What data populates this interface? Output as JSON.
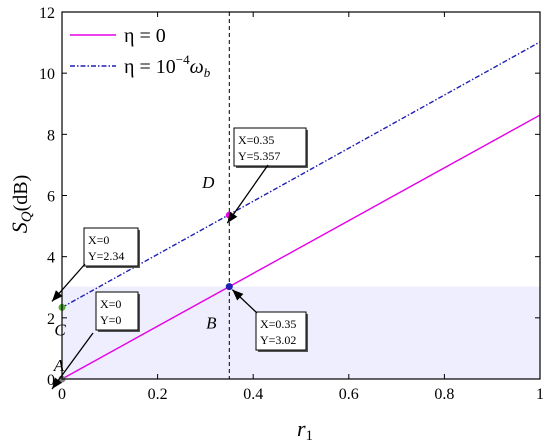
{
  "chart_data": {
    "type": "line",
    "xlabel": "r",
    "xlabel_sub": "1",
    "ylabel_main": "S",
    "ylabel_sub": "Q",
    "ylabel_unit": "(dB)",
    "xlim": [
      0,
      1
    ],
    "ylim": [
      0,
      12
    ],
    "xticks": [
      0,
      0.2,
      0.4,
      0.6,
      0.8,
      1
    ],
    "yticks": [
      0,
      2,
      4,
      6,
      8,
      10,
      12
    ],
    "xtick_labels": [
      "0",
      "0.2",
      "0.4",
      "0.6",
      "0.8",
      "1"
    ],
    "ytick_labels": [
      "0",
      "2",
      "4",
      "6",
      "8",
      "10",
      "12"
    ],
    "grid": false,
    "legend_position": "top-left",
    "series": [
      {
        "name": "η = 0",
        "legend_text": "η = 0",
        "color": "#e600e6",
        "style": "solid",
        "x": [
          0,
          1
        ],
        "y": [
          0,
          8.63
        ]
      },
      {
        "name": "η = 10⁻⁴ω_b",
        "legend_text_main": "η = 10",
        "legend_text_sup": "−4",
        "legend_text_omega": "ω",
        "legend_text_sub": "b",
        "color": "#1f1fb4",
        "style": "dash-dot",
        "x": [
          0,
          1
        ],
        "y": [
          2.34,
          11.02
        ]
      }
    ],
    "vline": {
      "x": 0.35,
      "style": "dashed",
      "color": "#000000"
    },
    "shaded_band": {
      "y": [
        0,
        3.02
      ],
      "x": [
        0,
        1
      ],
      "color": "#eeeeff"
    },
    "points": [
      {
        "label": "A",
        "x": 0,
        "y": 0,
        "color": "#808080",
        "box_x": "X=0",
        "box_y": "Y=0"
      },
      {
        "label": "B",
        "x": 0.35,
        "y": 3.02,
        "color": "#1f1fb4",
        "box_x": "X=0.35",
        "box_y": "Y=3.02"
      },
      {
        "label": "C",
        "x": 0,
        "y": 2.34,
        "color": "#55aa33",
        "box_x": "X=0",
        "box_y": "Y=2.34"
      },
      {
        "label": "D",
        "x": 0.35,
        "y": 5.357,
        "color": "#e600e6",
        "box_x": "X=0.35",
        "box_y": "Y=5.357"
      }
    ]
  }
}
